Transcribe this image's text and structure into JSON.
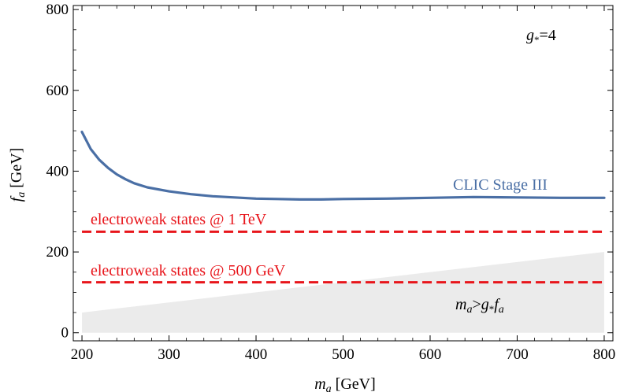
{
  "chart_data": {
    "type": "line",
    "xlim": [
      190,
      810
    ],
    "ylim": [
      -20,
      810
    ],
    "x_ticks": [
      "200",
      "300",
      "400",
      "500",
      "600",
      "700",
      "800"
    ],
    "y_ticks": [
      "0",
      "200",
      "400",
      "600",
      "800"
    ],
    "x_tick_values": [
      200,
      300,
      400,
      500,
      600,
      700,
      800
    ],
    "y_tick_values": [
      0,
      200,
      400,
      600,
      800
    ],
    "xlabel": {
      "main": "m",
      "sub": "a",
      "unit": " [GeV]"
    },
    "ylabel": {
      "main": "f",
      "sub": "a",
      "unit": " [GeV]"
    },
    "grid": false,
    "series": [
      {
        "name": "CLIC Stage III",
        "color": "#4a6fa5",
        "x": [
          200,
          210,
          220,
          230,
          240,
          250,
          260,
          275,
          300,
          325,
          350,
          375,
          400,
          425,
          450,
          475,
          500,
          550,
          600,
          650,
          700,
          750,
          800
        ],
        "y": [
          497,
          455,
          428,
          408,
          392,
          380,
          370,
          360,
          350,
          343,
          338,
          335,
          332,
          331,
          330,
          330,
          331,
          332,
          334,
          336,
          335,
          334,
          334
        ]
      }
    ],
    "reference_lines": [
      {
        "name": "electroweak states @ 1 TeV",
        "y": 250,
        "color": "#e8151b"
      },
      {
        "name": "electroweak states @ 500 GeV",
        "y": 125,
        "color": "#e8151b"
      }
    ],
    "excluded_region": {
      "label_main": "m",
      "label_sub": "a",
      "label_rel": ">",
      "label_g": "g",
      "label_gsub": "*",
      "label_f": "f",
      "label_fsub": "a",
      "color": "#ebebeb",
      "x": [
        200,
        800
      ],
      "y_lower": [
        0,
        0
      ],
      "y_upper": [
        50,
        200
      ]
    },
    "annotation": {
      "g": "g",
      "sub": "*",
      "rest": "=4"
    }
  }
}
